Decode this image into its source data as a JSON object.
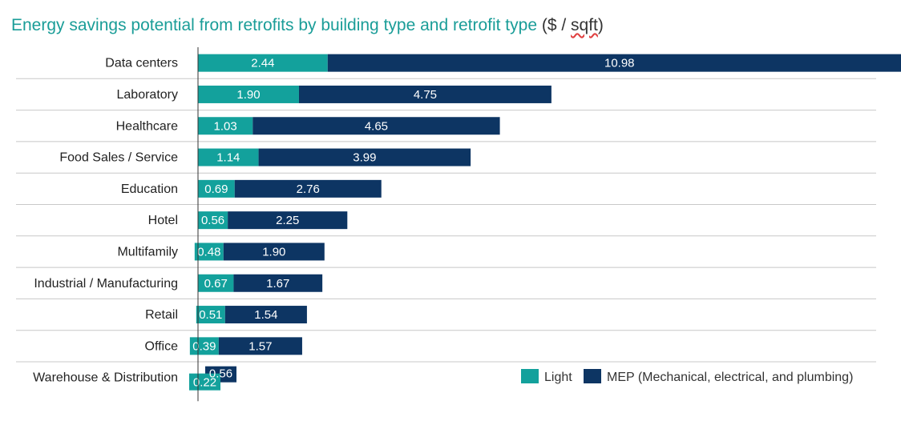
{
  "title": "Energy savings potential from retrofits by building type and retrofit type",
  "unit_prefix": "($ / ",
  "unit_word": "sqft",
  "unit_suffix": ")",
  "colors": {
    "light": "#13a19c",
    "mep": "#0d3563",
    "title": "#1a9d98",
    "grid": "#c8c8c8"
  },
  "chart_data": {
    "type": "bar",
    "orientation": "horizontal",
    "stacked": true,
    "categories": [
      "Data centers",
      "Laboratory",
      "Healthcare",
      "Food Sales / Service",
      "Education",
      "Hotel",
      "Multifamily",
      "Industrial / Manufacturing",
      "Retail",
      "Office",
      "Warehouse & Distribution"
    ],
    "series": [
      {
        "name": "Light",
        "values": [
          2.44,
          1.9,
          1.03,
          1.14,
          0.69,
          0.56,
          0.48,
          0.67,
          0.51,
          0.39,
          0.22
        ]
      },
      {
        "name": "MEP (Mechanical, electrical, and plumbing)",
        "values": [
          10.98,
          4.75,
          4.65,
          3.99,
          2.76,
          2.25,
          1.9,
          1.67,
          1.54,
          1.57,
          0.56
        ]
      }
    ],
    "value_labels": [
      [
        "2.44",
        "10.98"
      ],
      [
        "1.90",
        "4.75"
      ],
      [
        "1.03",
        "4.65"
      ],
      [
        "1.14",
        "3.99"
      ],
      [
        "0.69",
        "2.76"
      ],
      [
        "0.56",
        "2.25"
      ],
      [
        "0.48",
        "1.90"
      ],
      [
        "0.67",
        "1.67"
      ],
      [
        "0.51",
        "1.54"
      ],
      [
        "0.39",
        "1.57"
      ],
      [
        "0.22",
        "0.56"
      ]
    ],
    "legend_position": "bottom-right",
    "grid": "horizontal separators"
  }
}
